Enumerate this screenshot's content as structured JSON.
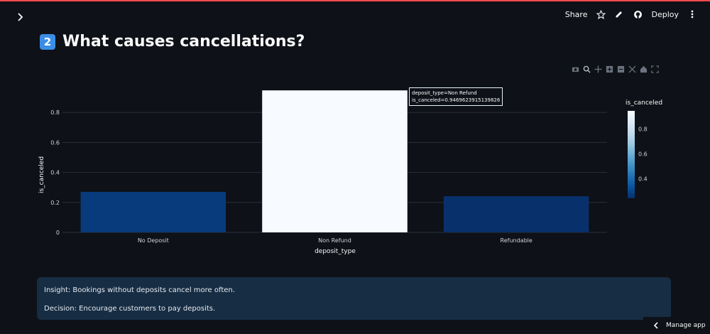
{
  "header": {
    "share_label": "Share",
    "deploy_label": "Deploy"
  },
  "page": {
    "badge": "2",
    "title": "What causes cancellations?"
  },
  "tooltip": {
    "line1": "deposit_type=Non Refund",
    "line2": "is_canceled=0.9469623915139826"
  },
  "colorbar": {
    "title": "is_canceled",
    "ticks": [
      0.4,
      0.6,
      0.8
    ],
    "range": [
      0.2410958904109589,
      0.9469623915139826
    ],
    "colors": [
      "#08306b",
      "#08519c",
      "#2171b5",
      "#4292c6",
      "#6baed6",
      "#9ecae1",
      "#c6dbef",
      "#deebf7",
      "#f7fbff"
    ]
  },
  "chart_data": {
    "type": "bar",
    "categories": [
      "No Deposit",
      "Non Refund",
      "Refundable"
    ],
    "values": [
      0.2704,
      0.9469623915139826,
      0.2411
    ],
    "xlabel": "deposit_type",
    "ylabel": "is_canceled",
    "ylim": [
      0,
      1.0
    ],
    "yticks": [
      0,
      0.2,
      0.4,
      0.6,
      0.8
    ],
    "grid": true,
    "colorscale": "Blues"
  },
  "insight": {
    "line1": "Insight: Bookings without deposits cancel more often.",
    "line2": "Decision: Encourage customers to pay deposits."
  },
  "footer": {
    "manage_label": "Manage app"
  }
}
